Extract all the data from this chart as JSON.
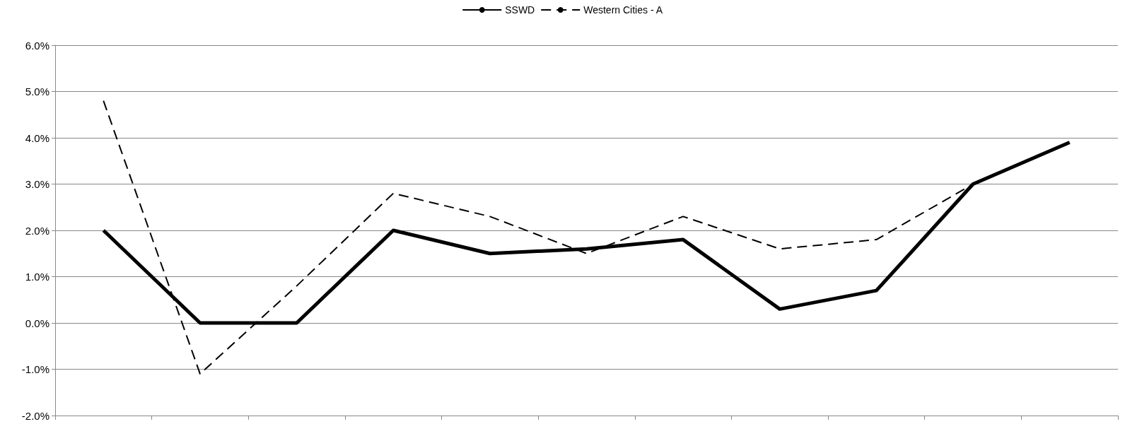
{
  "chart_data": {
    "type": "line",
    "categories": [
      null,
      null,
      null,
      null,
      null,
      null,
      null,
      null,
      null,
      null,
      null
    ],
    "series": [
      {
        "name": "SSWD",
        "color": "#000000",
        "line_style": "solid",
        "values": [
          2.0,
          0.0,
          0.0,
          2.0,
          1.5,
          1.6,
          1.8,
          0.3,
          0.7,
          3.0,
          3.9
        ]
      },
      {
        "name": "Western Cities - A",
        "color": "#000000",
        "line_style": "dashed",
        "values": [
          4.8,
          -1.1,
          0.8,
          2.8,
          2.3,
          1.5,
          2.3,
          1.6,
          1.8,
          3.0,
          null
        ]
      }
    ],
    "ylim": [
      -2,
      6
    ],
    "yticks": [
      {
        "value": -2,
        "label": "-2.0%"
      },
      {
        "value": -1,
        "label": "-1.0%"
      },
      {
        "value": 0,
        "label": "0.0%"
      },
      {
        "value": 1,
        "label": "1.0%"
      },
      {
        "value": 2,
        "label": "2.0%"
      },
      {
        "value": 3,
        "label": "3.0%"
      },
      {
        "value": 4,
        "label": "4.0%"
      },
      {
        "value": 5,
        "label": "5.0%"
      },
      {
        "value": 6,
        "label": "6.0%"
      }
    ],
    "grid": "y",
    "legend": "top",
    "marker": "none",
    "tick_labels": "y"
  }
}
